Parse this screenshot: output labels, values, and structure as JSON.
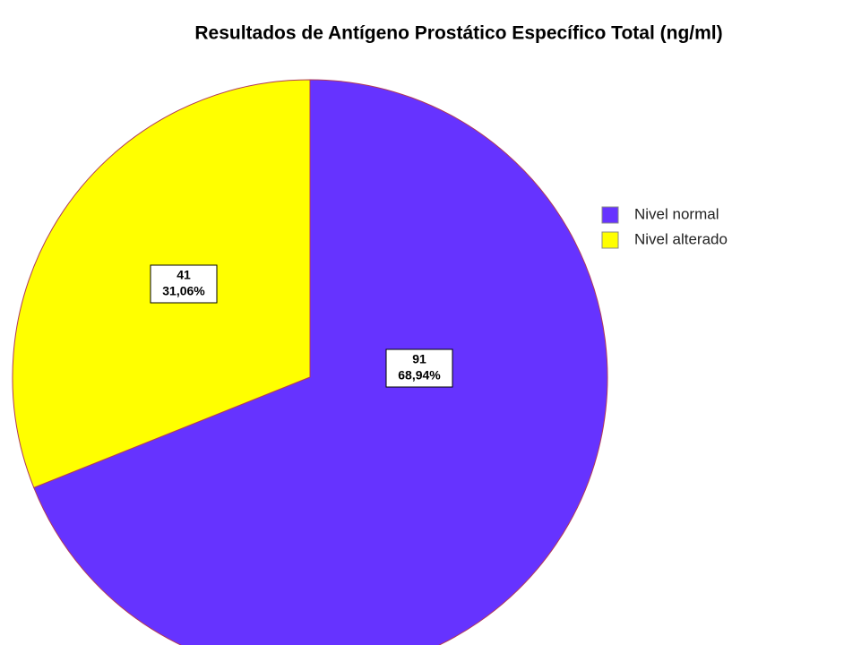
{
  "chart_data": {
    "type": "pie",
    "title": "Resultados de Antígeno Prostático Específico Total (ng/ml)",
    "categories": [
      "Nivel normal",
      "Nivel alterado"
    ],
    "values": [
      91,
      41
    ],
    "percent_labels": [
      "68,94%",
      "31,06%"
    ],
    "colors": [
      "#6633ff",
      "#ffff00"
    ]
  }
}
